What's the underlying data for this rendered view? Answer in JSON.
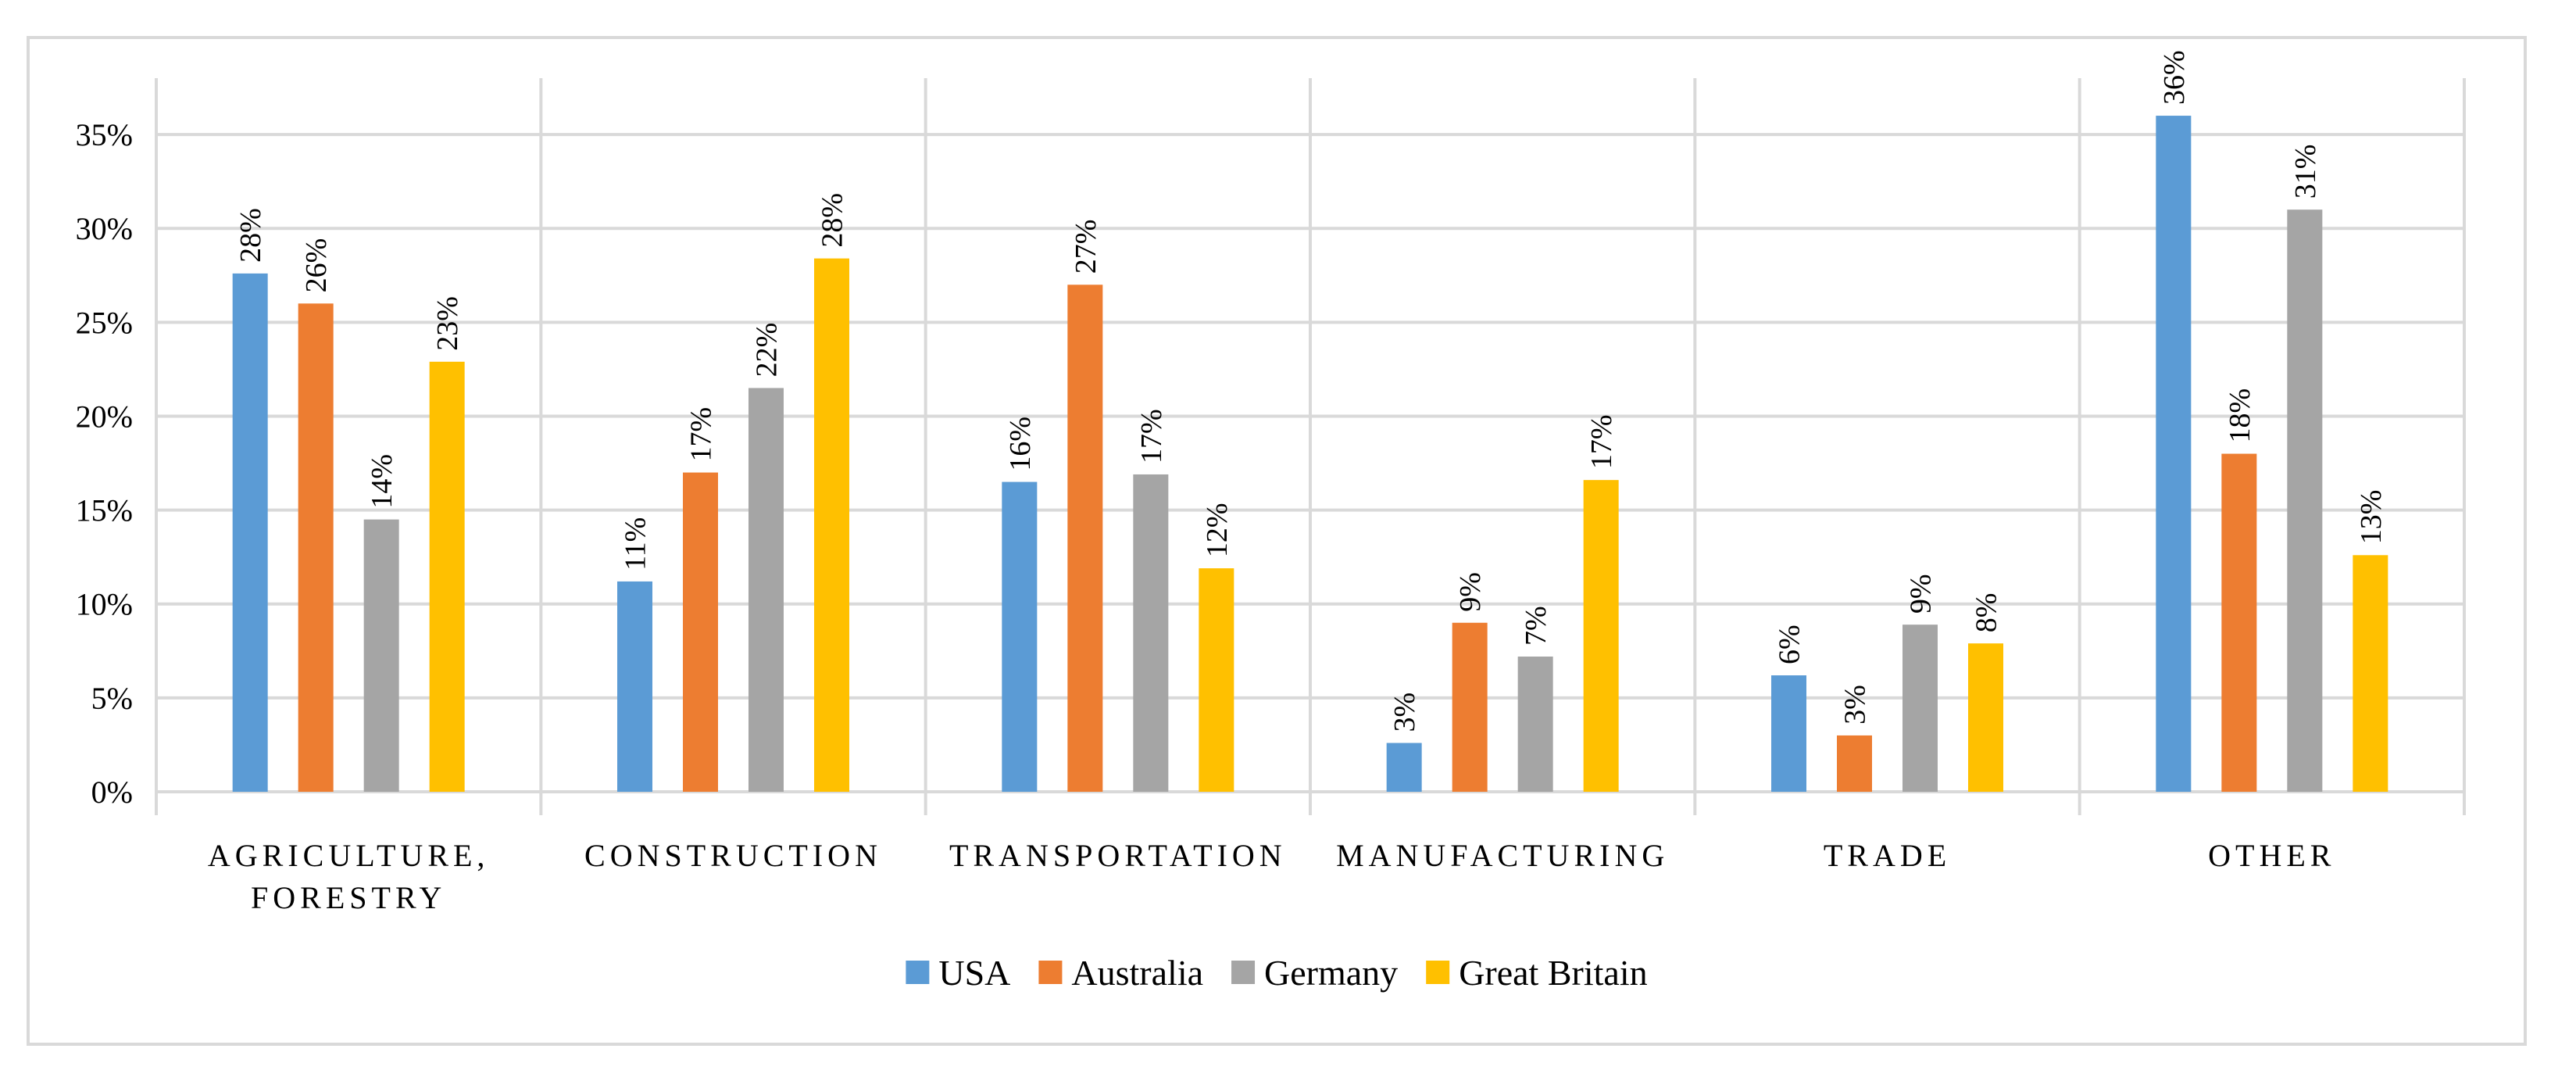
{
  "chart_data": {
    "type": "bar",
    "title": "",
    "xlabel": "",
    "ylabel": "",
    "categories": [
      [
        "AGRICULTURE,",
        "FORESTRY"
      ],
      [
        "CONSTRUCTION"
      ],
      [
        "TRANSPORTATION"
      ],
      [
        "MANUFACTURING"
      ],
      [
        "TRADE"
      ],
      [
        "OTHER"
      ]
    ],
    "series": [
      {
        "name": "USA",
        "color": "#5b9bd5",
        "values": [
          27.6,
          11.2,
          16.5,
          2.6,
          6.2,
          36.0
        ],
        "labels": [
          "28%",
          "11%",
          "16%",
          "3%",
          "6%",
          "36%"
        ]
      },
      {
        "name": "Australia",
        "color": "#ed7d31",
        "values": [
          26.0,
          17.0,
          27.0,
          9.0,
          3.0,
          18.0
        ],
        "labels": [
          "26%",
          "17%",
          "27%",
          "9%",
          "3%",
          "18%"
        ]
      },
      {
        "name": "Germany",
        "color": "#a5a5a5",
        "values": [
          14.5,
          21.5,
          16.9,
          7.2,
          8.9,
          31.0
        ],
        "labels": [
          "14%",
          "22%",
          "17%",
          "7%",
          "9%",
          "31%"
        ]
      },
      {
        "name": "Great Britain",
        "color": "#ffc000",
        "values": [
          22.9,
          28.4,
          11.9,
          16.6,
          7.9,
          12.6
        ],
        "labels": [
          "23%",
          "28%",
          "12%",
          "17%",
          "8%",
          "13%"
        ]
      }
    ],
    "ylim": [
      0,
      38
    ],
    "yticks": [
      0,
      5,
      10,
      15,
      20,
      25,
      30,
      35
    ],
    "ytick_labels": [
      "0%",
      "5%",
      "10%",
      "15%",
      "20%",
      "25%",
      "30%",
      "35%"
    ],
    "grid": true,
    "legend_position": "bottom"
  }
}
